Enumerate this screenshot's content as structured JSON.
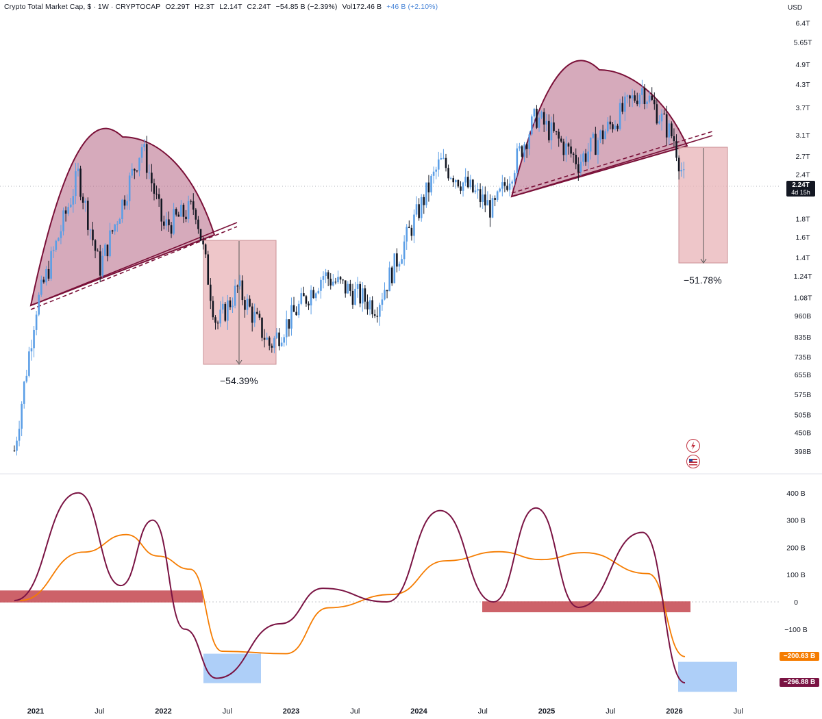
{
  "header": {
    "title": "Crypto Total Market Cap, $ · 1W · CRYPTOCAP",
    "open": "O2.29T",
    "high": "H2.3T",
    "low": "L2.14T",
    "close": "C2.24T",
    "change": "−54.85 B (−2.39%)",
    "volume": "Vol172.46 B",
    "volume_change": "+46 B (+2.10%)"
  },
  "currency_label": "USD",
  "price_tag": {
    "value": "2.24T",
    "countdown": "4d 15h"
  },
  "indicator_tags": {
    "signal": "−200.63 B",
    "main": "−296.88 B"
  },
  "annotations": {
    "drop_2022": "−54.39%",
    "drop_2026": "−51.78%"
  },
  "colors": {
    "up_candle": "#5b9ee6",
    "down_candle": "#131722",
    "dome_fill": "#b56584",
    "dome_stroke": "#7a1038",
    "drop_box": "#e8b3b7",
    "indicator_main": "#7a1343",
    "indicator_signal": "#f57c00",
    "zone_red": "#c4464f",
    "zone_blue": "#93bff5"
  },
  "chart_data": [
    {
      "type": "candlestick",
      "title": "Crypto Total Market Cap",
      "y_scale": "log",
      "y_unit": "USD",
      "y_ticks": [
        "6.4T",
        "5.65T",
        "4.9T",
        "4.3T",
        "3.7T",
        "3.1T",
        "2.7T",
        "2.4T",
        "1.8T",
        "1.6T",
        "1.4T",
        "1.24T",
        "1.08T",
        "960B",
        "835B",
        "735B",
        "655B",
        "575B",
        "505B",
        "450B",
        "398B"
      ],
      "x_ticks": [
        "2021",
        "Jul",
        "2022",
        "Jul",
        "2023",
        "Jul",
        "2024",
        "Jul",
        "2025",
        "Jul",
        "2026",
        "Jul"
      ],
      "x_range": [
        "2020-11",
        "2026-07"
      ],
      "approx_weekly_close_trend": [
        {
          "date": "2020-11",
          "value": 0.4
        },
        {
          "date": "2021-01",
          "value": 1.0
        },
        {
          "date": "2021-05",
          "value": 2.4
        },
        {
          "date": "2021-07",
          "value": 1.3
        },
        {
          "date": "2021-11",
          "value": 2.9
        },
        {
          "date": "2022-01",
          "value": 1.7
        },
        {
          "date": "2022-04",
          "value": 1.95
        },
        {
          "date": "2022-06",
          "value": 0.9
        },
        {
          "date": "2022-08",
          "value": 1.15
        },
        {
          "date": "2022-11",
          "value": 0.79
        },
        {
          "date": "2023-04",
          "value": 1.25
        },
        {
          "date": "2023-09",
          "value": 1.02
        },
        {
          "date": "2024-03",
          "value": 2.6
        },
        {
          "date": "2024-08",
          "value": 1.9
        },
        {
          "date": "2024-12",
          "value": 3.5
        },
        {
          "date": "2025-04",
          "value": 2.6
        },
        {
          "date": "2025-10",
          "value": 4.2
        },
        {
          "date": "2026-01",
          "value": 3.0
        },
        {
          "date": "2026-02",
          "value": 2.24
        }
      ],
      "annotations": [
        {
          "label": "−54.39%",
          "from_value": 1.62,
          "to_value": 0.74
        },
        {
          "label": "−51.78%",
          "from_value": 2.88,
          "to_value": 1.39
        }
      ],
      "last_price": "2.24T"
    },
    {
      "type": "line",
      "y_unit": "B",
      "y_ticks": [
        "400 B",
        "300 B",
        "200 B",
        "100 B",
        "0",
        "−100 B"
      ],
      "series": [],
      "approx_main_trend": [
        {
          "date": "2020-11",
          "value": 5
        },
        {
          "date": "2021-05",
          "value": 400
        },
        {
          "date": "2021-09",
          "value": 60
        },
        {
          "date": "2021-12",
          "value": 300
        },
        {
          "date": "2022-03",
          "value": -100
        },
        {
          "date": "2022-06",
          "value": -280
        },
        {
          "date": "2022-12",
          "value": -80
        },
        {
          "date": "2023-04",
          "value": 50
        },
        {
          "date": "2023-10",
          "value": 0
        },
        {
          "date": "2024-03",
          "value": 335
        },
        {
          "date": "2024-08",
          "value": 0
        },
        {
          "date": "2024-12",
          "value": 345
        },
        {
          "date": "2025-04",
          "value": -20
        },
        {
          "date": "2025-10",
          "value": 255
        },
        {
          "date": "2026-02",
          "value": -296.88
        }
      ],
      "last_values": {
        "main": "−296.88 B",
        "signal": "−200.63 B"
      }
    }
  ]
}
